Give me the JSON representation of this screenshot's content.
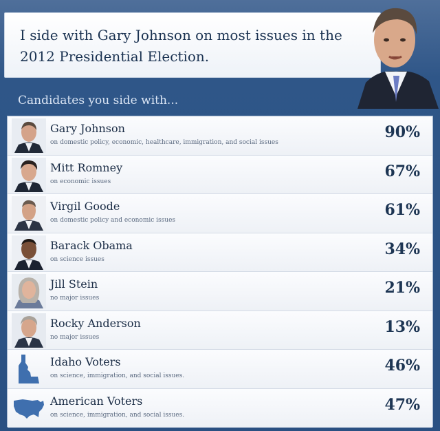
{
  "header": {
    "text": "I side with Gary Johnson on most issues in the 2012 Presidential Election."
  },
  "subtitle": "Candidates you side with...",
  "candidates": [
    {
      "name": "Gary Johnson",
      "issues": "on domestic policy, economic, healthcare, immigration, and social issues",
      "percent": "90%",
      "icon": "candidate-photo"
    },
    {
      "name": "Mitt Romney",
      "issues": "on economic issues",
      "percent": "67%",
      "icon": "candidate-photo"
    },
    {
      "name": "Virgil Goode",
      "issues": "on domestic policy and economic issues",
      "percent": "61%",
      "icon": "candidate-photo"
    },
    {
      "name": "Barack Obama",
      "issues": "on science issues",
      "percent": "34%",
      "icon": "candidate-photo"
    },
    {
      "name": "Jill Stein",
      "issues": "no major issues",
      "percent": "21%",
      "icon": "candidate-photo"
    },
    {
      "name": "Rocky Anderson",
      "issues": "no major issues",
      "percent": "13%",
      "icon": "candidate-photo"
    },
    {
      "name": "Idaho Voters",
      "issues": "on science, immigration, and social issues.",
      "percent": "46%",
      "icon": "idaho-map-icon"
    },
    {
      "name": "American Voters",
      "issues": "on science, immigration, and social issues.",
      "percent": "47%",
      "icon": "usa-map-icon"
    }
  ],
  "colors": {
    "background": "#2c5385",
    "map_blue": "#3f6fae",
    "text_dark": "#1a2c45"
  }
}
